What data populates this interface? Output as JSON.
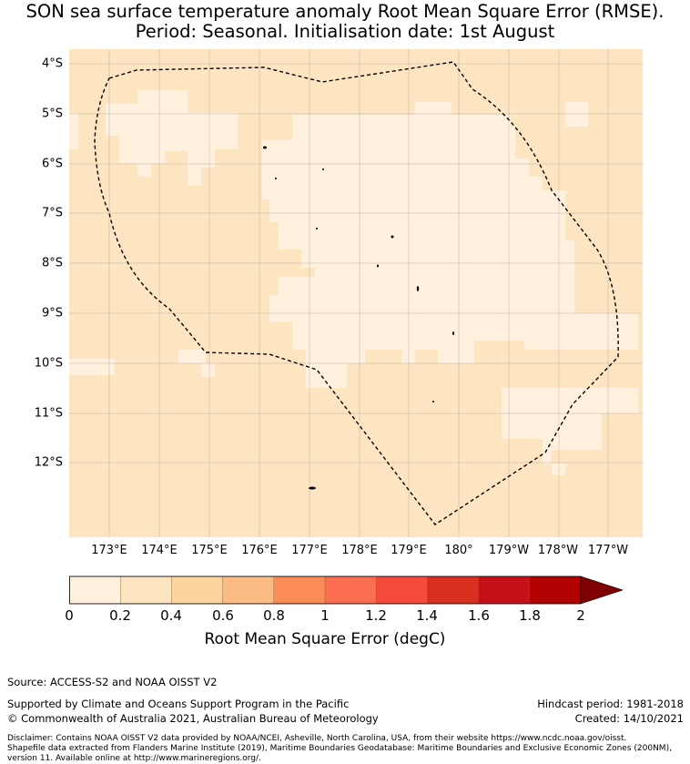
{
  "title": {
    "line1": "SON sea surface temperature anomaly Root Mean Square Error (RMSE).",
    "line2": "Period: Seasonal. Initialisation date: 1st August"
  },
  "map": {
    "lat_labels": [
      "4°S",
      "5°S",
      "6°S",
      "7°S",
      "8°S",
      "9°S",
      "10°S",
      "11°S",
      "12°S"
    ],
    "lon_labels": [
      "173°E",
      "174°E",
      "175°E",
      "176°E",
      "177°E",
      "178°E",
      "179°E",
      "180°",
      "179°W",
      "178°W",
      "177°W"
    ],
    "region": "Tuvalu Exclusive Economic Zone (dashed outline)",
    "dominant_rmse_range": "0.2 - 0.4 degC"
  },
  "colorbar": {
    "ticks": [
      "0",
      "0.2",
      "0.4",
      "0.6",
      "0.8",
      "1",
      "1.2",
      "1.4",
      "1.6",
      "1.8",
      "2"
    ],
    "colors": [
      "#fff1de",
      "#fee5c2",
      "#fdd49e",
      "#fdbb84",
      "#fc8d59",
      "#fc6e51",
      "#f54b3a",
      "#d7301f",
      "#c5101a",
      "#b00000",
      "#7f0000"
    ],
    "label": "Root Mean Square Error (degC)"
  },
  "footer": {
    "source": "Source: ACCESS-S2 and NOAA OISST V2",
    "support": "Supported by Climate and Oceans Support Program in the Pacific",
    "copyright": "© Commonwealth of Australia 2021, Australian Bureau of Meteorology",
    "hindcast": "Hindcast period: 1981-2018",
    "created": "Created: 14/10/2021",
    "disclaimer1": "Disclaimer: Contains NOAA OISST V2 data provided by NOAA/NCEI, Asheville, North Carolina, USA, from their website https://www.ncdc.noaa.gov/oisst.",
    "disclaimer2": "Shapefile data extracted from Flanders Marine Institute (2019), Maritime Boundaries Geodatabase: Maritime Boundaries and Exclusive Economic Zones (200NM),",
    "disclaimer3": "version 11. Available online at http://www.marineregions.org/."
  }
}
